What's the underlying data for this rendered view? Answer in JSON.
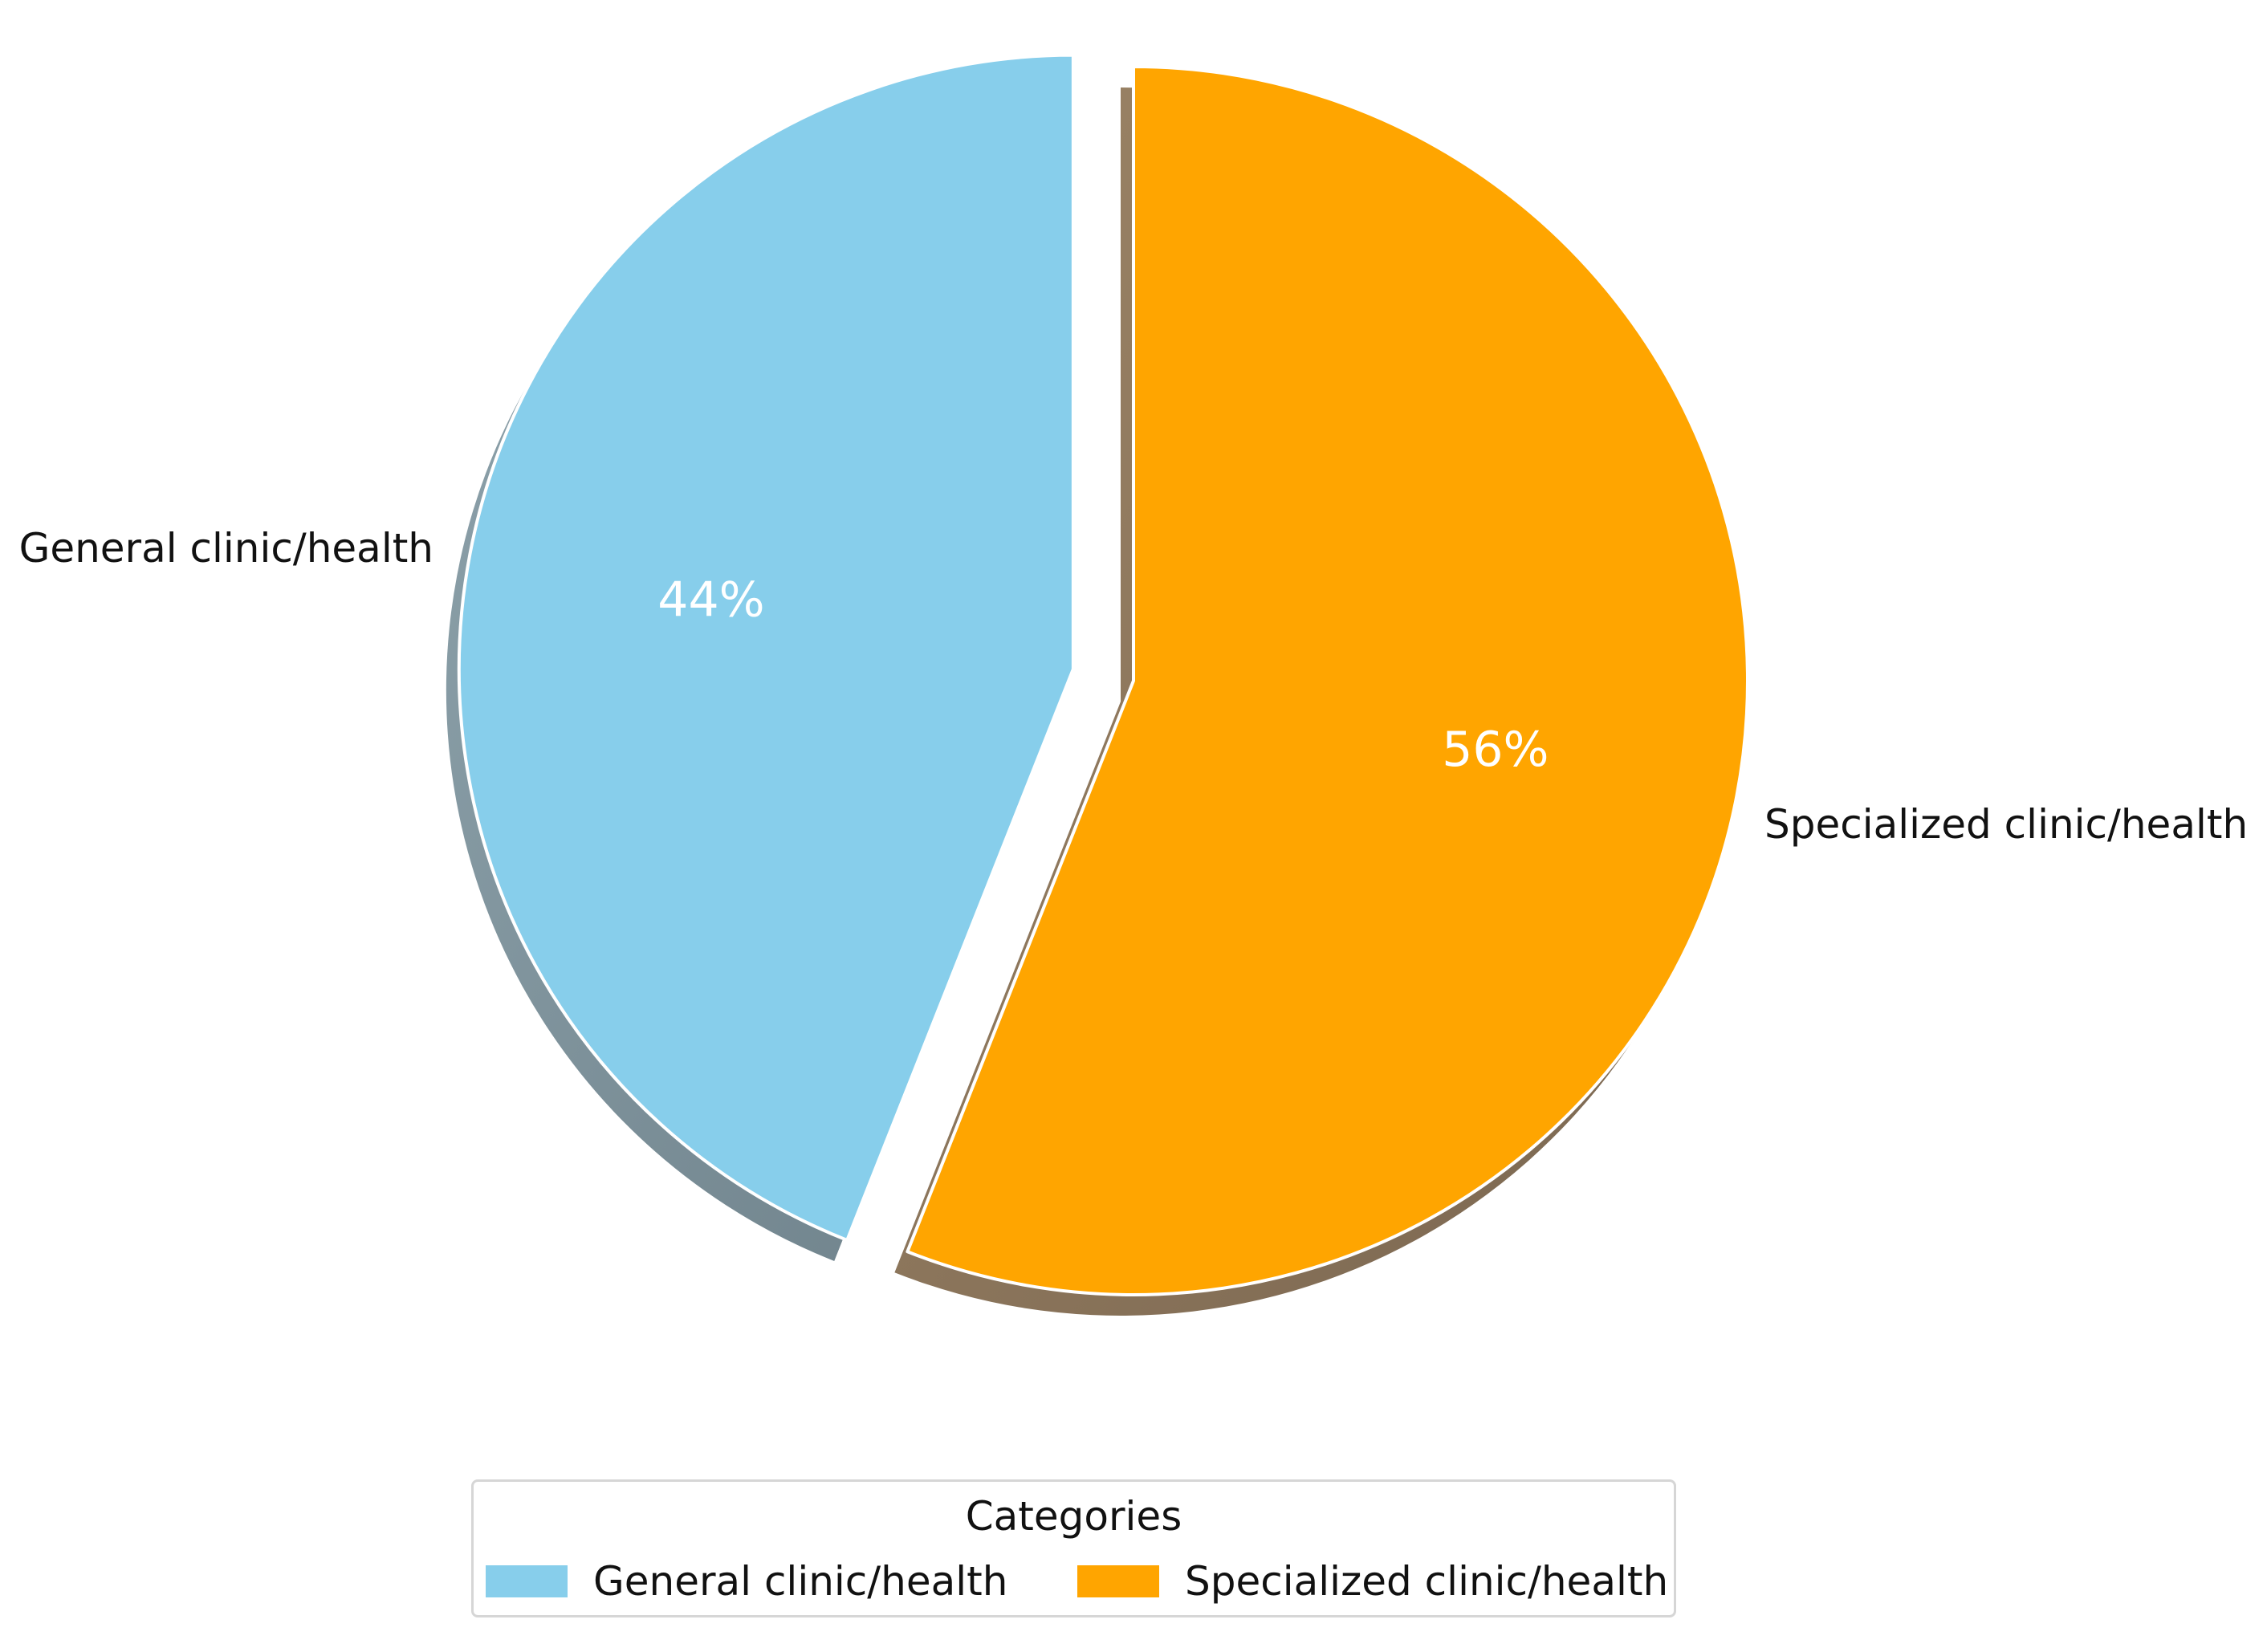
{
  "chart_data": {
    "type": "pie",
    "title": "",
    "categories": [
      "General clinic/health",
      "Specialized clinic/health"
    ],
    "values": [
      44,
      56
    ],
    "value_labels": [
      "44%",
      "56%"
    ],
    "colors": [
      "#87ceeb",
      "#ffa500"
    ],
    "explode": [
      0.1,
      0
    ],
    "shadow": true,
    "start_angle_deg": 90,
    "legend": {
      "title": "Categories",
      "placement": "bottom-center",
      "entries": [
        "General clinic/health",
        "Specialized clinic/health"
      ]
    }
  }
}
